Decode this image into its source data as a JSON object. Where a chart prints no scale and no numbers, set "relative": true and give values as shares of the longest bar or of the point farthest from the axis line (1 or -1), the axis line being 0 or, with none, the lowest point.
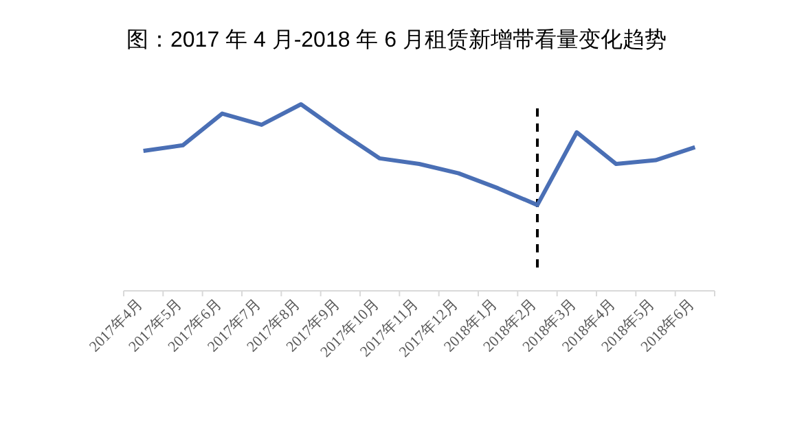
{
  "chart_data": {
    "type": "line",
    "title": "图：2017 年 4 月-2018 年 6 月租赁新增带看量变化趋势",
    "relative": true,
    "categories": [
      "2017年4月",
      "2017年5月",
      "2017年6月",
      "2017年7月",
      "2017年8月",
      "2017年9月",
      "2017年10月",
      "2017年11月",
      "2017年12月",
      "2018年1月",
      "2018年2月",
      "2018年3月",
      "2018年4月",
      "2018年5月",
      "2018年6月"
    ],
    "series": [
      {
        "color": "#4a6fb5",
        "values": [
          0.75,
          0.78,
          0.95,
          0.89,
          1,
          0.85,
          0.71,
          0.68,
          0.63,
          0.55,
          0.46,
          0.85,
          0.68,
          0.7,
          0.77
        ]
      }
    ],
    "ref_lines": [
      {
        "axis": "x",
        "value": "2018年2月",
        "color": "#000000",
        "line_style": "dashed"
      }
    ],
    "marker": "none",
    "line_style": "solid"
  }
}
